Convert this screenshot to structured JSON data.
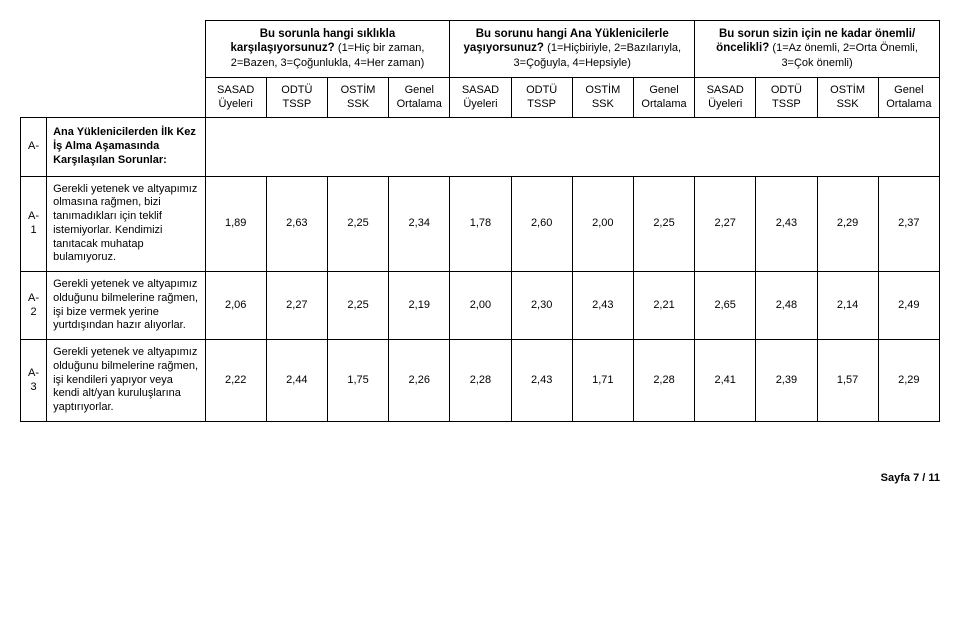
{
  "questions": {
    "q1": {
      "title": "Bu sorunla hangi sıklıkla karşılaşıyorsunuz?",
      "scale": "(1=Hiç bir zaman, 2=Bazen, 3=Çoğunlukla, 4=Her zaman)"
    },
    "q2": {
      "title": "Bu sorunu hangi Ana Yüklenicilerle yaşıyorsunuz?",
      "scale": "(1=Hiçbiriyle, 2=Bazılarıyla, 3=Çoğuyla, 4=Hepsiyle)"
    },
    "q3": {
      "title": "Bu sorun sizin için ne kadar önemli/öncelikli?",
      "scale": "(1=Az önemli, 2=Orta Önemli, 3=Çok önemli)"
    }
  },
  "columnGroups": [
    {
      "c1": "SASAD Üyeleri",
      "c2": "ODTÜ TSSP",
      "c3": "OSTİM SSK",
      "c4": "Genel Ortalama"
    },
    {
      "c1": "SASAD Üyeleri",
      "c2": "ODTÜ TSSP",
      "c3": "OSTİM SSK",
      "c4": "Genel Ortalama"
    },
    {
      "c1": "SASAD Üyeleri",
      "c2": "ODTÜ TSSP",
      "c3": "OSTİM SSK",
      "c4": "Genel Ortalama"
    }
  ],
  "section": {
    "id": "A-",
    "title": "Ana Yüklenicilerden İlk Kez İş Alma Aşamasında Karşılaşılan Sorunlar:"
  },
  "rows": [
    {
      "id": "A-1",
      "label": "Gerekli yetenek ve altyapımız olmasına rağmen, bizi tanımadıkları için teklif istemiyorlar. Kendimizi tanıtacak muhatap bulamıyoruz.",
      "vals": [
        "1,89",
        "2,63",
        "2,25",
        "2,34",
        "1,78",
        "2,60",
        "2,00",
        "2,25",
        "2,27",
        "2,43",
        "2,29",
        "2,37"
      ]
    },
    {
      "id": "A-2",
      "label": "Gerekli yetenek ve altyapımız olduğunu bilmelerine rağmen, işi bize vermek yerine yurtdışından hazır alıyorlar.",
      "vals": [
        "2,06",
        "2,27",
        "2,25",
        "2,19",
        "2,00",
        "2,30",
        "2,43",
        "2,21",
        "2,65",
        "2,48",
        "2,14",
        "2,49"
      ]
    },
    {
      "id": "A-3",
      "label": "Gerekli yetenek ve altyapımız olduğunu bilmelerine rağmen, işi kendileri yapıyor veya kendi alt/yan kuruluşlarına yaptırıyorlar.",
      "vals": [
        "2,22",
        "2,44",
        "1,75",
        "2,26",
        "2,28",
        "2,43",
        "1,71",
        "2,28",
        "2,41",
        "2,39",
        "1,57",
        "2,29"
      ]
    }
  ],
  "footer": {
    "text": "Sayfa 7 / 11"
  },
  "widths": {
    "idcol": 26,
    "labelcol": 158,
    "datacol": 61
  }
}
